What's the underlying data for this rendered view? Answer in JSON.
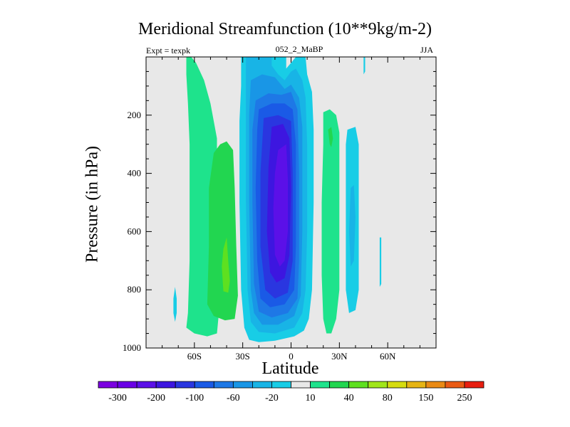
{
  "chart_data": {
    "type": "contour",
    "title": "Meridional Streamfunction (10**9kg/m-2)",
    "left_label": "Expt = texpk",
    "center_label": "052_2_MaBP",
    "right_label": "JJA",
    "xlabel": "Latitude",
    "ylabel": "Pressure (in hPa)",
    "xlim": [
      -90,
      90
    ],
    "ylim": [
      1000,
      0
    ],
    "x_ticks": [
      {
        "value": -60,
        "label": "60S"
      },
      {
        "value": -30,
        "label": "30S"
      },
      {
        "value": 0,
        "label": "0"
      },
      {
        "value": 30,
        "label": "30N"
      },
      {
        "value": 60,
        "label": "60N"
      }
    ],
    "y_ticks": [
      {
        "value": 200,
        "label": "200"
      },
      {
        "value": 400,
        "label": "400"
      },
      {
        "value": 600,
        "label": "600"
      },
      {
        "value": 800,
        "label": "800"
      },
      {
        "value": 1000,
        "label": "1000"
      }
    ],
    "background_color": "#e8e8e8",
    "levels": [
      -300,
      -250,
      -200,
      -150,
      -100,
      -80,
      -60,
      -40,
      -20,
      -10,
      10,
      20,
      40,
      60,
      80,
      100,
      150,
      200,
      250,
      300
    ],
    "colorbar_labels": [
      {
        "after_index": 0,
        "label": "-300"
      },
      {
        "after_index": 2,
        "label": "-200"
      },
      {
        "after_index": 4,
        "label": "-100"
      },
      {
        "after_index": 6,
        "label": "-60"
      },
      {
        "after_index": 8,
        "label": "-20"
      },
      {
        "after_index": 10,
        "label": "10"
      },
      {
        "after_index": 12,
        "label": "40"
      },
      {
        "after_index": 14,
        "label": "80"
      },
      {
        "after_index": 16,
        "label": "150"
      },
      {
        "after_index": 18,
        "label": "250"
      }
    ],
    "colorbar_colors": [
      "#7b00e0",
      "#6a00e6",
      "#5b10e8",
      "#3d16e0",
      "#2a36e0",
      "#1a5ae6",
      "#1e78e6",
      "#1996e6",
      "#18b4e6",
      "#18cde6",
      "#e8e8e8",
      "#1ee38c",
      "#22d650",
      "#5ee020",
      "#a0e61a",
      "#d6dc10",
      "#e6b414",
      "#ea8a14",
      "#ea5a14",
      "#e81e10"
    ],
    "regions": [
      {
        "name": "sh-cell-edge",
        "value": 10,
        "color": "#1ee38c",
        "points": [
          [
            -65,
            0
          ],
          [
            -62,
            0
          ],
          [
            -59,
            20
          ],
          [
            -54,
            80
          ],
          [
            -50,
            160
          ],
          [
            -46,
            280
          ],
          [
            -46,
            500
          ],
          [
            -46,
            700
          ],
          [
            -45,
            890
          ],
          [
            -46,
            950
          ],
          [
            -52,
            960
          ],
          [
            -60,
            950
          ],
          [
            -65,
            930
          ],
          [
            -64,
            880
          ],
          [
            -63,
            700
          ],
          [
            -63,
            500
          ],
          [
            -63,
            300
          ],
          [
            -64,
            160
          ],
          [
            -65,
            60
          ]
        ]
      },
      {
        "name": "sh-cell-mid",
        "value": 20,
        "color": "#22d650",
        "points": [
          [
            -40,
            290
          ],
          [
            -36,
            320
          ],
          [
            -35,
            450
          ],
          [
            -34,
            650
          ],
          [
            -33,
            820
          ],
          [
            -35,
            900
          ],
          [
            -41,
            905
          ],
          [
            -48,
            890
          ],
          [
            -52,
            850
          ],
          [
            -51,
            650
          ],
          [
            -51,
            450
          ],
          [
            -48,
            330
          ],
          [
            -44,
            300
          ]
        ]
      },
      {
        "name": "sh-cell-core",
        "value": 40,
        "color": "#5ee020",
        "points": [
          [
            -40,
            620
          ],
          [
            -39,
            700
          ],
          [
            -38,
            770
          ],
          [
            -39,
            810
          ],
          [
            -42,
            805
          ],
          [
            -43,
            720
          ],
          [
            -42,
            660
          ]
        ]
      },
      {
        "name": "sh-small-blob",
        "value": -10,
        "color": "#18cde6",
        "points": [
          [
            -72,
            790
          ],
          [
            -71,
            830
          ],
          [
            -71,
            880
          ],
          [
            -72,
            910
          ],
          [
            -73,
            880
          ],
          [
            -73,
            830
          ]
        ]
      },
      {
        "name": "hadley-cell-m10",
        "value": -10,
        "color": "#18cde6",
        "points": [
          [
            -31,
            0
          ],
          [
            -3,
            0
          ],
          [
            -3,
            40
          ],
          [
            0,
            20
          ],
          [
            3,
            0
          ],
          [
            9,
            0
          ],
          [
            10,
            60
          ],
          [
            13,
            120
          ],
          [
            14,
            250
          ],
          [
            14,
            500
          ],
          [
            13,
            800
          ],
          [
            11,
            900
          ],
          [
            8,
            940
          ],
          [
            2,
            960
          ],
          [
            -10,
            975
          ],
          [
            -20,
            980
          ],
          [
            -26,
            972
          ],
          [
            -29,
            930
          ],
          [
            -31,
            800
          ],
          [
            -32,
            500
          ],
          [
            -32,
            220
          ],
          [
            -31,
            100
          ]
        ]
      },
      {
        "name": "hadley-cell-m20",
        "value": -20,
        "color": "#18b4e6",
        "points": [
          [
            -28,
            0
          ],
          [
            -12,
            0
          ],
          [
            -12,
            30
          ],
          [
            -8,
            60
          ],
          [
            -4,
            80
          ],
          [
            0,
            50
          ],
          [
            3,
            40
          ],
          [
            7,
            80
          ],
          [
            9,
            140
          ],
          [
            10,
            300
          ],
          [
            10,
            600
          ],
          [
            9,
            800
          ],
          [
            7,
            880
          ],
          [
            2,
            930
          ],
          [
            -10,
            950
          ],
          [
            -20,
            945
          ],
          [
            -25,
            910
          ],
          [
            -27,
            800
          ],
          [
            -28,
            500
          ],
          [
            -28,
            200
          ],
          [
            -28,
            80
          ]
        ]
      },
      {
        "name": "hadley-cell-m40",
        "value": -40,
        "color": "#1996e6",
        "points": [
          [
            -25,
            80
          ],
          [
            -18,
            60
          ],
          [
            -10,
            70
          ],
          [
            -4,
            110
          ],
          [
            0,
            95
          ],
          [
            5,
            140
          ],
          [
            7,
            240
          ],
          [
            7,
            600
          ],
          [
            6,
            820
          ],
          [
            2,
            890
          ],
          [
            -8,
            920
          ],
          [
            -18,
            920
          ],
          [
            -23,
            880
          ],
          [
            -25,
            800
          ],
          [
            -26,
            500
          ],
          [
            -26,
            200
          ]
        ]
      },
      {
        "name": "hadley-cell-m60",
        "value": -60,
        "color": "#1e78e6",
        "points": [
          [
            -22,
            150
          ],
          [
            -14,
            125
          ],
          [
            -6,
            130
          ],
          [
            0,
            120
          ],
          [
            4,
            180
          ],
          [
            5,
            400
          ],
          [
            5,
            700
          ],
          [
            4,
            830
          ],
          [
            -2,
            880
          ],
          [
            -12,
            895
          ],
          [
            -20,
            875
          ],
          [
            -23,
            780
          ],
          [
            -24,
            500
          ],
          [
            -24,
            250
          ]
        ]
      },
      {
        "name": "hadley-cell-m80",
        "value": -80,
        "color": "#1a5ae6",
        "points": [
          [
            -20,
            180
          ],
          [
            -12,
            160
          ],
          [
            -4,
            160
          ],
          [
            1,
            180
          ],
          [
            3,
            300
          ],
          [
            3,
            650
          ],
          [
            2,
            800
          ],
          [
            -4,
            850
          ],
          [
            -13,
            860
          ],
          [
            -19,
            830
          ],
          [
            -21,
            700
          ],
          [
            -22,
            450
          ],
          [
            -21,
            250
          ]
        ]
      },
      {
        "name": "hadley-cell-m100",
        "value": -100,
        "color": "#2a36e0",
        "points": [
          [
            -17,
            210
          ],
          [
            -8,
            200
          ],
          [
            0,
            220
          ],
          [
            1,
            400
          ],
          [
            1,
            700
          ],
          [
            -2,
            810
          ],
          [
            -10,
            830
          ],
          [
            -16,
            800
          ],
          [
            -19,
            650
          ],
          [
            -19,
            400
          ]
        ]
      },
      {
        "name": "hadley-cell-m150",
        "value": -150,
        "color": "#3d16e0",
        "points": [
          [
            -12,
            240
          ],
          [
            -5,
            230
          ],
          [
            -1,
            280
          ],
          [
            0,
            450
          ],
          [
            -1,
            680
          ],
          [
            -4,
            760
          ],
          [
            -9,
            775
          ],
          [
            -13,
            740
          ],
          [
            -15,
            600
          ],
          [
            -14,
            380
          ]
        ]
      },
      {
        "name": "hadley-cell-m200",
        "value": -200,
        "color": "#5b10e8",
        "points": [
          [
            -8,
            320
          ],
          [
            -3,
            300
          ],
          [
            -2,
            420
          ],
          [
            -2,
            600
          ],
          [
            -4,
            700
          ],
          [
            -7,
            720
          ],
          [
            -10,
            680
          ],
          [
            -11,
            520
          ],
          [
            -10,
            400
          ]
        ]
      },
      {
        "name": "nh-cell-edge",
        "value": 10,
        "color": "#1ee38c",
        "points": [
          [
            20,
            190
          ],
          [
            24,
            180
          ],
          [
            28,
            200
          ],
          [
            30,
            260
          ],
          [
            30,
            500
          ],
          [
            30,
            800
          ],
          [
            28,
            900
          ],
          [
            25,
            950
          ],
          [
            22,
            950
          ],
          [
            20,
            900
          ],
          [
            19,
            750
          ],
          [
            19,
            500
          ],
          [
            20,
            300
          ]
        ]
      },
      {
        "name": "nh-cell-core",
        "value": 20,
        "color": "#22d650",
        "points": [
          [
            23,
            250
          ],
          [
            25,
            240
          ],
          [
            26,
            280
          ],
          [
            25,
            310
          ],
          [
            24,
            300
          ]
        ]
      },
      {
        "name": "nh-streak",
        "value": -10,
        "color": "#18cde6",
        "points": [
          [
            35,
            250
          ],
          [
            40,
            240
          ],
          [
            42,
            300
          ],
          [
            42,
            600
          ],
          [
            42,
            800
          ],
          [
            40,
            870
          ],
          [
            36,
            880
          ],
          [
            34,
            800
          ],
          [
            34,
            500
          ],
          [
            34,
            300
          ]
        ]
      },
      {
        "name": "nh-streak-inner",
        "value": -20,
        "color": "#18b4e6",
        "points": [
          [
            37,
            450
          ],
          [
            39,
            440
          ],
          [
            40,
            550
          ],
          [
            39,
            700
          ],
          [
            37,
            720
          ],
          [
            36,
            600
          ]
        ]
      },
      {
        "name": "nh-top-spike",
        "value": -10,
        "color": "#18cde6",
        "points": [
          [
            45,
            0
          ],
          [
            46,
            0
          ],
          [
            46,
            50
          ],
          [
            45,
            60
          ]
        ]
      },
      {
        "name": "nh-small-streak",
        "value": -10,
        "color": "#18cde6",
        "points": [
          [
            55,
            620
          ],
          [
            56,
            620
          ],
          [
            56,
            780
          ],
          [
            55,
            790
          ]
        ]
      }
    ]
  }
}
